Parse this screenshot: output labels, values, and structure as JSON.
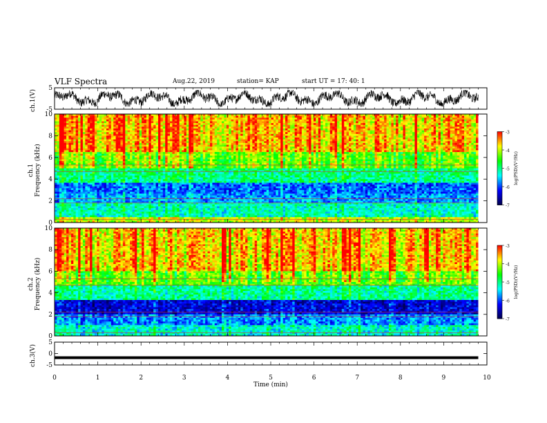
{
  "header": {
    "title": "VLF Spectra",
    "date": "Aug.22, 2019",
    "station": "station= KAP",
    "start": "start  UT  =   17: 40: 1"
  },
  "chart_data": [
    {
      "type": "line",
      "panel": "ch1-waveform",
      "ylabel": "ch.1(V)",
      "ylim": [
        -5,
        5
      ],
      "yticks": [
        "5",
        "-5"
      ],
      "xlim": [
        0,
        10
      ],
      "series": [
        {
          "values_range": [
            -3.5,
            3.5
          ],
          "duration_min": 9.8
        }
      ]
    },
    {
      "type": "heatmap",
      "panel": "ch1-spectrogram",
      "ylabel": "ch.1\nFrequency (kHz)",
      "ylabel_lines": [
        "ch.1",
        "Frequency  (kHz)"
      ],
      "ylim": [
        0,
        10
      ],
      "yticks": [
        "0",
        "2",
        "4",
        "6",
        "8",
        "10"
      ],
      "xlim": [
        0,
        10
      ],
      "colorbar": {
        "label": "log(PSD)(V²/Hz)",
        "range": [
          -7,
          -3
        ],
        "ticks": [
          "-3",
          "-4",
          "-5",
          "-6",
          "-7"
        ]
      },
      "band_levels": [
        {
          "f": [
            0,
            0.5
          ],
          "v": -4.0
        },
        {
          "f": [
            0.5,
            1.8
          ],
          "v": -5.2
        },
        {
          "f": [
            1.8,
            2.6
          ],
          "v": -5.7
        },
        {
          "f": [
            2.6,
            3.6
          ],
          "v": -5.9
        },
        {
          "f": [
            3.6,
            5.0
          ],
          "v": -5.0
        },
        {
          "f": [
            5.0,
            6.5
          ],
          "v": -4.3
        },
        {
          "f": [
            6.5,
            10
          ],
          "v": -3.6
        }
      ]
    },
    {
      "type": "heatmap",
      "panel": "ch2-spectrogram",
      "ylabel_lines": [
        "ch.2",
        "Frequency  (kHz)"
      ],
      "ylim": [
        0,
        10
      ],
      "yticks": [
        "0",
        "2",
        "4",
        "6",
        "8",
        "10"
      ],
      "xlim": [
        0,
        10
      ],
      "colorbar": {
        "label": "log(PSD)(V²/Hz)",
        "range": [
          -7,
          -3
        ],
        "ticks": [
          "-3",
          "-4",
          "-5",
          "-6",
          "-7"
        ]
      },
      "band_levels": [
        {
          "f": [
            0,
            1.0
          ],
          "v": -5.3
        },
        {
          "f": [
            1.0,
            2.0
          ],
          "v": -5.8
        },
        {
          "f": [
            2.0,
            3.4
          ],
          "v": -6.4
        },
        {
          "f": [
            3.4,
            4.6
          ],
          "v": -5.1
        },
        {
          "f": [
            4.6,
            6.0
          ],
          "v": -4.4
        },
        {
          "f": [
            6.0,
            10
          ],
          "v": -3.7
        }
      ]
    },
    {
      "type": "line",
      "panel": "ch3-waveform",
      "ylabel": "ch.3(V)",
      "ylim": [
        -5,
        5
      ],
      "yticks": [
        "5",
        "0",
        "-5"
      ],
      "xlim": [
        0,
        10
      ],
      "series": [
        {
          "values": [
            -1.8
          ],
          "duration_min": 9.8
        }
      ]
    }
  ],
  "xaxis": {
    "label": "Time  (min)",
    "ticks": [
      "0",
      "1",
      "2",
      "3",
      "4",
      "5",
      "6",
      "7",
      "8",
      "9",
      "10"
    ]
  },
  "colors": {
    "waveform": "#000000",
    "colormap": [
      "#00004c",
      "#0000ff",
      "#00ffff",
      "#00ff00",
      "#ffff00",
      "#ff0000",
      "#ffffff"
    ]
  }
}
